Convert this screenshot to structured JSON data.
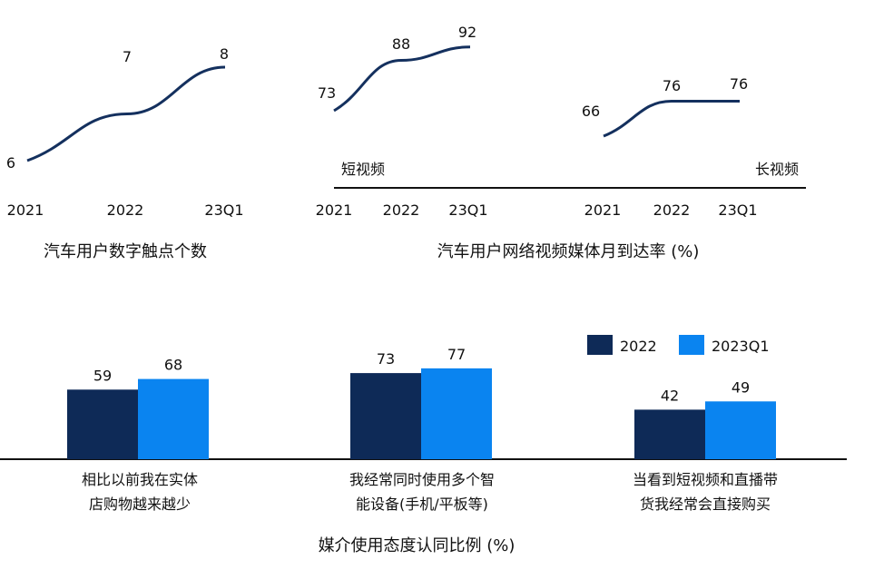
{
  "colors": {
    "line": "#14305e",
    "bar_2022": "#0e2a57",
    "bar_2023q1": "#0a84f0",
    "axis": "#111111",
    "text": "#111111"
  },
  "chart_data": [
    {
      "type": "line",
      "title": "汽车用户数字触点个数",
      "categories": [
        "2021",
        "2022",
        "23Q1"
      ],
      "series": [
        {
          "values": [
            6,
            7,
            8
          ]
        }
      ],
      "data_labels": [
        "6",
        "7",
        "8"
      ]
    },
    {
      "type": "line",
      "title": "汽车用户网络视频媒体月到达率 (%)",
      "panels": [
        {
          "label": "短视频",
          "categories": [
            "2021",
            "2022",
            "23Q1"
          ],
          "values": [
            73,
            88,
            92
          ],
          "data_labels": [
            "73",
            "88",
            "92"
          ]
        },
        {
          "label": "长视频",
          "categories": [
            "2021",
            "2022",
            "23Q1"
          ],
          "values": [
            66,
            76,
            76
          ],
          "data_labels": [
            "66",
            "76",
            "76"
          ]
        }
      ]
    },
    {
      "type": "bar",
      "title": "媒介使用态度认同比例 (%)",
      "categories": [
        [
          "相比以前我在实体",
          "店购物越来越少"
        ],
        [
          "我经常同时使用多个智",
          "能设备(手机/平板等)"
        ],
        [
          "当看到短视频和直播带",
          "货我经常会直接购买"
        ]
      ],
      "series": [
        {
          "name": "2022",
          "values": [
            59,
            73,
            42
          ]
        },
        {
          "name": "2023Q1",
          "values": [
            68,
            77,
            49
          ]
        }
      ],
      "legend": "top-right"
    }
  ]
}
